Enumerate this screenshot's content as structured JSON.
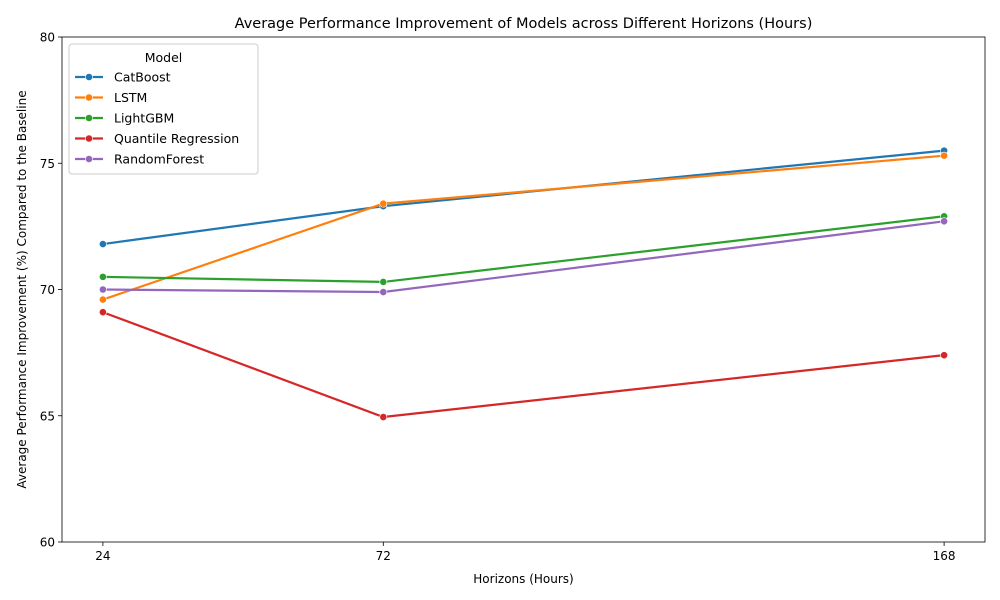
{
  "chart_data": {
    "type": "line",
    "title": "Average Performance Improvement of Models across Different Horizons (Hours)",
    "xlabel": "Horizons (Hours)",
    "ylabel": "Average Performance Improvement (%) Compared to the Baseline",
    "x": [
      24,
      72,
      168
    ],
    "x_ticks": [
      24,
      72,
      168
    ],
    "xlim": [
      17,
      175
    ],
    "ylim": [
      60,
      80
    ],
    "y_ticks": [
      60,
      65,
      70,
      75,
      80
    ],
    "grid": false,
    "legend": {
      "title": "Model",
      "placement": "top-left"
    },
    "series": [
      {
        "name": "CatBoost",
        "color": "#1f77b4",
        "values": [
          71.8,
          73.3,
          75.5
        ]
      },
      {
        "name": "LSTM",
        "color": "#ff7f0e",
        "values": [
          69.6,
          73.4,
          75.3
        ]
      },
      {
        "name": "LightGBM",
        "color": "#2ca02c",
        "values": [
          70.5,
          70.3,
          72.9
        ]
      },
      {
        "name": "Quantile Regression",
        "color": "#d62728",
        "values": [
          69.1,
          64.95,
          67.4
        ]
      },
      {
        "name": "RandomForest",
        "color": "#9467bd",
        "values": [
          70.0,
          69.9,
          72.7
        ]
      }
    ]
  }
}
